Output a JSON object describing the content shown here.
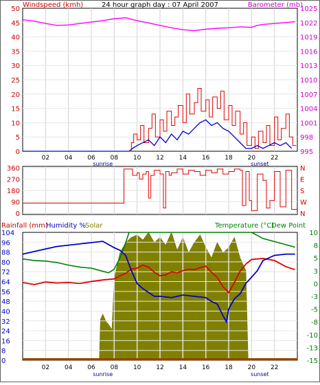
{
  "header": {
    "title": "24 hour graph day : 07 April 2007",
    "left_label": "Windspeed (kmh)",
    "right_label": "Barometer (mb)"
  },
  "colors": {
    "wind": "#dd0000",
    "gust": "#0000cc",
    "barometer": "#ff00ff",
    "direction": "#dd0000",
    "temperature": "#dd0000",
    "dewpoint": "#008000",
    "humidity": "#0000cc",
    "solar": "#808000",
    "rainfall": "#a04000",
    "axis_red": "#cc0000",
    "axis_magenta": "#cc00cc",
    "axis_green": "#008000"
  },
  "x_axis": {
    "labels": [
      "02",
      "04",
      "06",
      "08",
      "10",
      "12",
      "14",
      "16",
      "18",
      "20",
      "22"
    ],
    "sunrise_label": "sunrise",
    "sunset_label": "sunset"
  },
  "chart_data": [
    {
      "type": "line",
      "name": "wind-barometer",
      "y_left": {
        "label": "Windspeed (kmh)",
        "ticks": [
          0,
          5,
          10,
          15,
          20,
          25,
          30,
          35,
          40,
          45,
          50
        ],
        "range": [
          0,
          50
        ]
      },
      "y_right": {
        "label": "Barometer (mb)",
        "ticks": [
          "995",
          "998",
          "1001",
          "1004",
          "1007",
          "1010",
          "1013",
          "1016",
          "1019",
          "1022",
          "1025"
        ],
        "range": [
          995,
          1025
        ]
      },
      "x_range_hours": [
        0,
        24
      ],
      "sunrise_hour": 8.2,
      "sunset_hour": 20.0,
      "series": [
        {
          "name": "Barometer (mb)",
          "color": "#ff00ff",
          "x": [
            0,
            1,
            2,
            3,
            4,
            5,
            6,
            7,
            8,
            9,
            10,
            11,
            12,
            13,
            14,
            15,
            16,
            17,
            18,
            19,
            20,
            20.5,
            21,
            22,
            23,
            23.8
          ],
          "y": [
            1022.6,
            1022.3,
            1021.8,
            1021.4,
            1021.5,
            1021.8,
            1022.1,
            1022.4,
            1022.8,
            1023.0,
            1022.4,
            1021.9,
            1021.4,
            1020.9,
            1020.5,
            1020.3,
            1020.6,
            1020.8,
            1020.9,
            1021.1,
            1021.0,
            1021.4,
            1021.6,
            1021.8,
            1022.0,
            1022.2
          ]
        },
        {
          "name": "Average wind",
          "color": "#0000cc",
          "x": [
            0,
            9.3,
            9.6,
            10,
            10.5,
            11,
            11.5,
            12,
            12.5,
            13,
            13.5,
            14,
            14.5,
            15,
            15.5,
            16,
            16.5,
            17,
            17.5,
            18,
            18.5,
            19,
            19.5,
            20,
            20.5,
            21,
            21.5,
            22,
            22.5,
            23,
            23.5
          ],
          "y": [
            0,
            0,
            1,
            2,
            3,
            4,
            2,
            5,
            3,
            6,
            4,
            7,
            6,
            8,
            10,
            11,
            9,
            10,
            8,
            7,
            5,
            3,
            1,
            1,
            2,
            1,
            2,
            3,
            2,
            3,
            1
          ]
        },
        {
          "name": "Gust",
          "color": "#dd0000",
          "x": [
            9.3,
            9.5,
            9.7,
            10,
            10.3,
            10.6,
            11,
            11.3,
            11.6,
            12,
            12.3,
            12.6,
            13,
            13.3,
            13.6,
            14,
            14.3,
            14.6,
            15,
            15.3,
            15.6,
            16,
            16.3,
            16.6,
            17,
            17.3,
            17.6,
            18,
            18.3,
            18.6,
            19,
            19.3,
            19.6,
            20,
            20.3,
            20.6,
            21,
            21.3,
            21.6,
            22,
            22.3,
            22.6,
            23,
            23.3,
            23.6
          ],
          "y": [
            0,
            3,
            6,
            4,
            9,
            3,
            8,
            13,
            5,
            11,
            7,
            14,
            9,
            12,
            16,
            10,
            20,
            13,
            17,
            22,
            14,
            18,
            12,
            19,
            15,
            21,
            11,
            16,
            9,
            14,
            6,
            10,
            2,
            5,
            1,
            7,
            3,
            9,
            2,
            12,
            4,
            8,
            13,
            5,
            2
          ]
        }
      ]
    },
    {
      "type": "line",
      "name": "wind-direction",
      "y_left": {
        "ticks": [
          0,
          90,
          180,
          270,
          360
        ],
        "range": [
          0,
          360
        ]
      },
      "y_right": {
        "ticks": [
          "N",
          "W",
          "S",
          "E",
          "N"
        ]
      },
      "x_range_hours": [
        0,
        24
      ],
      "series": [
        {
          "name": "Wind direction",
          "color": "#dd0000",
          "x": [
            0,
            8.8,
            8.85,
            9.5,
            9.6,
            10,
            10.2,
            10.5,
            10.8,
            11,
            11.2,
            11.5,
            12,
            12.3,
            12.5,
            12.8,
            13,
            13.5,
            14,
            14.5,
            15,
            15.5,
            16,
            16.5,
            17,
            17.5,
            18,
            18.5,
            19,
            19.2,
            19.5,
            19.8,
            20,
            20.5,
            21,
            21.3,
            21.6,
            22,
            22.5,
            23,
            23.5
          ],
          "y": [
            80,
            80,
            350,
            350,
            300,
            320,
            270,
            310,
            330,
            120,
            300,
            340,
            310,
            40,
            330,
            300,
            320,
            350,
            310,
            340,
            330,
            300,
            340,
            320,
            350,
            310,
            330,
            350,
            340,
            60,
            330,
            100,
            20,
            310,
            260,
            40,
            100,
            330,
            50,
            340,
            30
          ]
        }
      ]
    },
    {
      "type": "line",
      "name": "climate",
      "y_left": {
        "label_rain": "Rainfall (mm)",
        "label_humidity": "Humidity %",
        "label_solar": "Solar",
        "ticks": [
          0,
          8,
          16,
          24,
          32,
          40,
          48,
          56,
          64,
          72,
          80,
          88,
          96,
          104
        ]
      },
      "y_left_humidity": [
        "0",
        "12",
        "24",
        "36",
        "48",
        "60",
        "70",
        "80",
        "90",
        "100"
      ],
      "y_left_solar": [
        "0",
        "0.5",
        "1",
        "1.5",
        "2",
        "2.5",
        "3",
        "3.5",
        "4",
        "4.5",
        "5"
      ],
      "y_right": {
        "label": "Temperature (°C)",
        "label2": "Dew Point",
        "ticks": [
          "-15",
          "-13",
          "-10",
          "-8",
          "-5",
          "-3",
          "0",
          "3",
          "5",
          "8",
          "10"
        ],
        "range": [
          -15,
          10
        ]
      },
      "x_range_hours": [
        0,
        24
      ],
      "series": [
        {
          "name": "Solar",
          "color": "#808000",
          "x": [
            0,
            6.7,
            6.8,
            7,
            7.3,
            7.5,
            7.8,
            8,
            8.3,
            8.5,
            9,
            9.5,
            10,
            10.5,
            11,
            11.5,
            12,
            12.5,
            13,
            13.5,
            14,
            14.5,
            15,
            15.5,
            16,
            16.5,
            17,
            17.5,
            18,
            18.5,
            19,
            19.5,
            19.7,
            24
          ],
          "y": [
            0,
            0,
            1.6,
            1.8,
            1.5,
            1.4,
            1.2,
            3.2,
            3.8,
            4.2,
            4.6,
            4.8,
            4.9,
            4.7,
            5.0,
            4.6,
            4.8,
            4.5,
            5.0,
            4.3,
            4.8,
            4.2,
            4.6,
            4.9,
            4.4,
            4.0,
            4.6,
            4.2,
            4.4,
            4.8,
            4.0,
            3.5,
            0,
            0
          ]
        },
        {
          "name": "Temperature (°C)",
          "color": "#dd0000",
          "x": [
            0,
            1,
            2,
            3,
            4,
            5,
            6,
            7,
            8,
            8.5,
            9,
            9.5,
            10,
            10.5,
            11,
            11.5,
            12,
            12.5,
            13,
            13.5,
            14,
            14.5,
            15,
            15.5,
            16,
            16.5,
            17,
            17.5,
            18,
            18.5,
            19,
            19.5,
            20,
            21,
            22,
            23,
            23.8
          ],
          "y": [
            0.2,
            -0.2,
            0.3,
            0.1,
            0.2,
            0.0,
            0.4,
            0.7,
            0.9,
            1.5,
            2.0,
            2.8,
            3.0,
            3.6,
            3.2,
            2.2,
            1.5,
            1.7,
            2.3,
            2.1,
            2.5,
            2.8,
            2.7,
            3.1,
            3.4,
            2.2,
            1.2,
            -0.6,
            -1.8,
            0.2,
            2.4,
            3.8,
            4.7,
            4.9,
            4.5,
            3.3,
            2.7
          ]
        },
        {
          "name": "Dew Point",
          "color": "#008000",
          "x": [
            0,
            1,
            2,
            3,
            4,
            5,
            6,
            7,
            7.5,
            8,
            8.5,
            9,
            9.3,
            9.6,
            19.5,
            20,
            20.5,
            21,
            22,
            23,
            23.8
          ],
          "y": [
            4.8,
            4.5,
            4.4,
            4.1,
            3.6,
            3.2,
            3.0,
            2.4,
            2.1,
            2.8,
            5.0,
            8.0,
            10,
            11,
            11,
            10,
            9.4,
            8.8,
            8.2,
            7.6,
            7.1
          ]
        },
        {
          "name": "Humidity %",
          "color": "#0000cc",
          "x": [
            0,
            1,
            2,
            3,
            4,
            5,
            6,
            7,
            8,
            8.5,
            9,
            9.5,
            10,
            10.5,
            11,
            11.5,
            12,
            13,
            14,
            15,
            16,
            16.5,
            17,
            17.5,
            17.8,
            18,
            18.5,
            19,
            19.5,
            20,
            20.5,
            21,
            22,
            23,
            23.8
          ],
          "y": [
            83,
            85,
            87,
            89,
            90,
            91,
            92,
            93,
            88,
            86,
            82,
            70,
            60,
            56,
            53,
            50,
            50,
            49,
            51,
            50,
            49,
            46,
            44,
            35,
            30,
            40,
            48,
            52,
            60,
            65,
            70,
            78,
            82,
            83,
            83
          ]
        },
        {
          "name": "Rainfall (mm)",
          "color": "#a04000",
          "x": [
            0,
            24
          ],
          "y": [
            0,
            0
          ]
        }
      ]
    }
  ]
}
